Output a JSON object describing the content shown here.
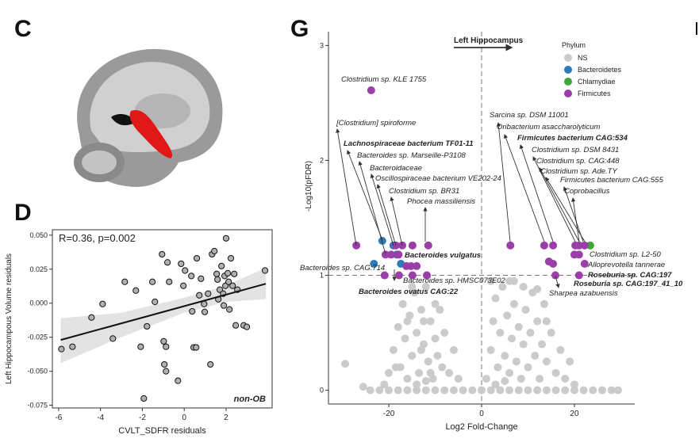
{
  "panel_labels": [
    "C",
    "D",
    "G"
  ],
  "chart_data": [
    {
      "type": "scatter",
      "xlabel": "CVLT_SDFR residuals",
      "ylabel": "Left Hippocampous Volume residuals",
      "annotations": [
        "R=0.36, p=0.002",
        "non-OB"
      ],
      "color": "#b0b0b0",
      "x": [
        -5.87,
        -5.34,
        -4.43,
        -3.9,
        -3.41,
        -2.84,
        -2.31,
        -2.08,
        -1.93,
        -1.78,
        -1.52,
        -1.4,
        -1.06,
        -0.98,
        -0.95,
        -0.87,
        -0.87,
        -0.8,
        -0.72,
        -0.3,
        -0.15,
        -0.04,
        0.04,
        0.34,
        0.38,
        0.45,
        0.57,
        0.6,
        0.72,
        0.8,
        0.95,
        0.98,
        1.14,
        1.25,
        1.33,
        1.44,
        1.55,
        1.59,
        1.63,
        1.7,
        1.78,
        1.86,
        1.89,
        1.93,
        1.97,
        2.0,
        2.08,
        2.12,
        2.16,
        2.23,
        2.31,
        2.39,
        2.46,
        2.54,
        2.84,
        2.99,
        3.86
      ],
      "values": [
        -0.0337,
        -0.032,
        -0.0105,
        -0.0006,
        -0.026,
        0.0157,
        0.0093,
        -0.032,
        -0.07,
        -0.017,
        0.0157,
        0.001,
        0.036,
        -0.028,
        -0.045,
        -0.032,
        -0.05,
        0.03,
        0.0157,
        -0.057,
        0.029,
        0.0128,
        0.024,
        0.02,
        -0.006,
        -0.0325,
        -0.0325,
        0.033,
        0.0058,
        0.018,
        -0.0006,
        -0.0064,
        0.007,
        -0.045,
        0.036,
        0.0383,
        0.0215,
        0.0174,
        0.0029,
        0.0099,
        0.0273,
        0.007,
        -0.0017,
        0.02,
        0.0128,
        0.0477,
        0.022,
        0.0157,
        -0.0046,
        0.033,
        0.0128,
        0.0215,
        -0.0163,
        0.0099,
        -0.0163,
        -0.0174,
        0.024
      ],
      "fit": {
        "x": [
          -5.9,
          3.9
        ],
        "values": [
          -0.027,
          0.0143
        ]
      },
      "ci": {
        "x": [
          -5.9,
          -3,
          0,
          2,
          3.9
        ],
        "lower": [
          -0.044,
          -0.025,
          -0.007,
          0.001,
          0.003
        ],
        "upper": [
          -0.011,
          -0.007,
          0.004,
          0.013,
          0.026
        ]
      },
      "xlim": [
        -6.3,
        4.2
      ],
      "xticks": [
        -6,
        -4,
        -2,
        0,
        2
      ],
      "ylim": [
        -0.077,
        0.054
      ],
      "yticks": [
        {
          "value": 0.05,
          "label": "0.050"
        },
        {
          "value": 0.025,
          "label": "0.025"
        },
        {
          "value": 0,
          "label": "0.000"
        },
        {
          "value": -0.025,
          "label": "-0.025"
        },
        {
          "value": -0.05,
          "label": "-0.050"
        },
        {
          "value": -0.075,
          "label": "-0.075"
        }
      ]
    },
    {
      "type": "volcano",
      "title": "Left Hippocampus",
      "xlabel": "Log2 Fold-Change",
      "ylabel": "-Log10(pFDR)",
      "legend_title": "Phylum",
      "hline": 1,
      "vline": 0,
      "xlim": [
        -33,
        33
      ],
      "xticks": [
        -20,
        0,
        20
      ],
      "ylim": [
        -0.12,
        3.12
      ],
      "yticks": [
        0,
        1,
        2,
        3
      ],
      "series": [
        {
          "name": "NS",
          "color": "#cbcbcb",
          "x": [
            -24,
            -22,
            -20,
            -18,
            -16,
            -14,
            -12,
            -10,
            -8,
            -6,
            -4,
            -2,
            0,
            2,
            4,
            6,
            8,
            10,
            12,
            14,
            16,
            18,
            20,
            22,
            24,
            26,
            28,
            -29.4,
            -25.5,
            29.4,
            -19,
            -18,
            -17.5,
            -17,
            -16.5,
            -16,
            -15.5,
            -15,
            -14.5,
            -14,
            -13.5,
            -13,
            -12.5,
            -12,
            -11.5,
            -11,
            -10.5,
            -10,
            -9.5,
            -9,
            -8.5,
            -8,
            -7,
            -6,
            -5,
            -14,
            -12,
            -16,
            -13,
            -11,
            -15,
            -18.5,
            -20,
            -21,
            -10,
            -12.5,
            1,
            2,
            2.5,
            3,
            3.5,
            4,
            4.5,
            5,
            5.5,
            6,
            6.5,
            7,
            7.5,
            8,
            8.5,
            9,
            9.5,
            10,
            10.5,
            11,
            11.5,
            12,
            12.5,
            13,
            13.5,
            14,
            15,
            16,
            17,
            18,
            19,
            20,
            3,
            5,
            7,
            9,
            12,
            14,
            6,
            2
          ],
          "values": [
            0,
            0,
            0,
            0,
            0,
            0,
            0,
            0,
            0,
            0,
            0,
            0,
            0,
            0,
            0,
            0,
            0,
            0,
            0,
            0,
            0,
            0,
            0,
            0,
            0,
            0,
            0,
            0.23,
            0.03,
            0,
            0.35,
            0.55,
            0.2,
            0.75,
            0.45,
            0.1,
            0.65,
            0.3,
            0.85,
            0.5,
            0.15,
            0.7,
            0.4,
            0.9,
            0.25,
            0.6,
            0.1,
            0.45,
            0.3,
            0.7,
            0.2,
            0.5,
            0.15,
            0.35,
            0.1,
            0.05,
            0.08,
            0.6,
            0.35,
            0.15,
            0.9,
            0.2,
            0.15,
            0.05,
            0.75,
            0.6,
            0.1,
            0.35,
            0.6,
            0.8,
            0.2,
            0.5,
            0.9,
            0.3,
            0.65,
            0.15,
            0.45,
            0.75,
            0.25,
            0.55,
            0.1,
            0.4,
            0.7,
            0.2,
            0.5,
            0.85,
            0.3,
            0.6,
            0.1,
            0.4,
            0.75,
            0.25,
            0.5,
            0.15,
            0.35,
            0.1,
            0.25,
            0.05,
            0.05,
            0.08,
            0.95,
            0.9,
            0.88,
            0.6,
            0.95,
            0.95
          ]
        },
        {
          "name": "Bacteroidetes",
          "color": "#2b7bba",
          "x": [
            -21.4,
            -19.0,
            -23.2,
            -18.3,
            -17.4
          ],
          "values": [
            1.3,
            1.26,
            1.1,
            1.18,
            1.1
          ]
        },
        {
          "name": "Chlamydiae",
          "color": "#3aaa35",
          "x": [
            23.4
          ],
          "values": [
            1.26
          ]
        },
        {
          "name": "Firmicutes",
          "color": "#9b3fa8",
          "x": [
            -23.8,
            -27.0,
            -20.7,
            -18.5,
            -17.1,
            -14.9,
            -11.5,
            -19.5,
            -17.9,
            -16.2,
            -15.2,
            -14.0,
            -20.9,
            -17.8,
            -14.9,
            -11.8,
            6.2,
            13.5,
            15.4,
            20.2,
            21.0,
            22.2,
            14.5,
            15.4,
            20.0,
            21.0,
            22.2,
            21.0,
            15.9
          ],
          "values": [
            2.61,
            1.26,
            1.18,
            1.26,
            1.26,
            1.26,
            1.26,
            1.18,
            1.18,
            1.08,
            1.08,
            1.08,
            1.0,
            1.0,
            1.0,
            1.0,
            1.26,
            1.26,
            1.26,
            1.26,
            1.26,
            1.26,
            1.12,
            1.1,
            1.18,
            1.18,
            1.1,
            1.0,
            1.0
          ]
        }
      ],
      "annotations": [
        {
          "text": "Clostridium sp. KLE 1755",
          "bold": false
        },
        {
          "text": "[Clostridium] spiroforme",
          "bold": false
        },
        {
          "text": "Lachnospiraceae bacterium TF01-11",
          "bold": true
        },
        {
          "text": "Bacteroides sp. Marseille-P3108",
          "bold": false
        },
        {
          "text": "Bacteroidaceae",
          "bold": false
        },
        {
          "text": "Oscillospiraceae bacterium VE202-24",
          "bold": false
        },
        {
          "text": "Clostridium sp. BR31",
          "bold": false
        },
        {
          "text": "Phocea massiliensis",
          "bold": false
        },
        {
          "text": "Bacteroides vulgatus",
          "bold": true
        },
        {
          "text": "Bacteroides sp. CAG:714",
          "bold": false
        },
        {
          "text": "Bacteroides sp. HMSC073E02",
          "bold": false
        },
        {
          "text": "Bacteroides ovatus CAG:22",
          "bold": true
        },
        {
          "text": "Sarcina sp. DSM 11001",
          "bold": false
        },
        {
          "text": "Oribacterium asaccharolyticum",
          "bold": false
        },
        {
          "text": "Firmicutes bacterium CAG:534",
          "bold": true
        },
        {
          "text": "Clostridium sp. DSM 8431",
          "bold": false
        },
        {
          "text": "Clostridium sp. CAG:448",
          "bold": false
        },
        {
          "text": "Clostridium sp. Ade.TY",
          "bold": false
        },
        {
          "text": "Firmicutes bacterium CAG:555",
          "bold": false
        },
        {
          "text": "Coprobacillus",
          "bold": false
        },
        {
          "text": "Clostridium sp. L2-50",
          "bold": false
        },
        {
          "text": "Alloprevotella tannerae",
          "bold": false
        },
        {
          "text": "Roseburia sp. CAG:197",
          "bold": true
        },
        {
          "text": "Roseburia sp. CAG:197_41_10",
          "bold": true
        },
        {
          "text": "Sharpea azabuensis",
          "bold": false
        }
      ]
    }
  ]
}
